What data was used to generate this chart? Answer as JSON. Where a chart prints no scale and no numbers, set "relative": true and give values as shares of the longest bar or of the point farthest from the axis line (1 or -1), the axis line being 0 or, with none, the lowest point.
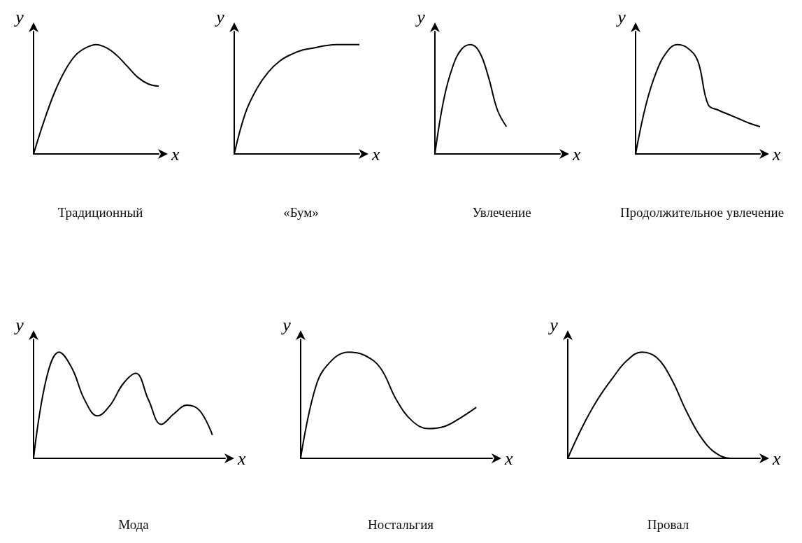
{
  "chart_data": [
    {
      "type": "line",
      "title": "Традиционный",
      "xlabel": "x",
      "ylabel": "y",
      "relative": true,
      "marker": "none",
      "color": "#000000",
      "categories": [
        null,
        null,
        null,
        null,
        null,
        null,
        null,
        null,
        null,
        null,
        null,
        null,
        null
      ],
      "values": [
        0,
        0.3,
        0.56,
        0.76,
        0.9,
        0.97,
        1,
        0.97,
        0.9,
        0.8,
        0.7,
        0.64,
        0.62
      ]
    },
    {
      "type": "line",
      "title": "«Бум»",
      "xlabel": "x",
      "ylabel": "y",
      "relative": true,
      "marker": "none",
      "color": "#000000",
      "categories": [
        null,
        null,
        null,
        null,
        null,
        null,
        null,
        null,
        null,
        null,
        null,
        null
      ],
      "values": [
        0,
        0.38,
        0.6,
        0.75,
        0.85,
        0.91,
        0.95,
        0.97,
        0.99,
        1,
        1,
        1
      ]
    },
    {
      "type": "line",
      "title": "Увлечение",
      "xlabel": "x",
      "ylabel": "y",
      "relative": true,
      "marker": "none",
      "color": "#000000",
      "categories": [
        null,
        null,
        null,
        null,
        null,
        null,
        null,
        null,
        null,
        null,
        null,
        null,
        null,
        null,
        null
      ],
      "values": [
        0,
        0.5,
        0.8,
        0.96,
        1,
        0.93,
        0.7,
        0.4,
        0.25,
        null,
        null,
        null,
        null,
        null,
        null
      ]
    },
    {
      "type": "line",
      "title": "Продолжительное увлечение",
      "xlabel": "x",
      "ylabel": "y",
      "relative": true,
      "marker": "none",
      "color": "#000000",
      "categories": [
        null,
        null,
        null,
        null,
        null,
        null,
        null,
        null,
        null,
        null,
        null,
        null,
        null
      ],
      "values": [
        0,
        0.45,
        0.75,
        0.93,
        1,
        0.97,
        0.85,
        0.45,
        0.4,
        0.36,
        0.32,
        0.28,
        0.25
      ]
    },
    {
      "type": "line",
      "title": "Мода",
      "xlabel": "x",
      "ylabel": "y",
      "relative": true,
      "marker": "none",
      "color": "#000000",
      "categories": [
        null,
        null,
        null,
        null,
        null,
        null,
        null,
        null,
        null,
        null,
        null,
        null,
        null,
        null,
        null,
        null
      ],
      "values": [
        0,
        0.75,
        1,
        0.85,
        0.55,
        0.4,
        0.5,
        0.7,
        0.8,
        0.55,
        0.32,
        0.42,
        0.5,
        0.45,
        0.22,
        null
      ]
    },
    {
      "type": "line",
      "title": "Ностальгия",
      "xlabel": "x",
      "ylabel": "y",
      "relative": true,
      "marker": "none",
      "color": "#000000",
      "categories": [
        null,
        null,
        null,
        null,
        null,
        null,
        null,
        null,
        null,
        null,
        null,
        null,
        null
      ],
      "values": [
        0,
        0.7,
        0.93,
        1,
        0.97,
        0.85,
        0.55,
        0.35,
        0.28,
        0.3,
        0.38,
        0.48,
        null
      ]
    },
    {
      "type": "line",
      "title": "Провал",
      "xlabel": "x",
      "ylabel": "y",
      "relative": true,
      "marker": "none",
      "color": "#000000",
      "categories": [
        null,
        null,
        null,
        null,
        null,
        null,
        null,
        null,
        null,
        null,
        null,
        null,
        null,
        null
      ],
      "values": [
        0,
        0.3,
        0.55,
        0.75,
        0.92,
        1,
        0.95,
        0.75,
        0.45,
        0.2,
        0.05,
        0,
        0,
        null
      ]
    }
  ]
}
